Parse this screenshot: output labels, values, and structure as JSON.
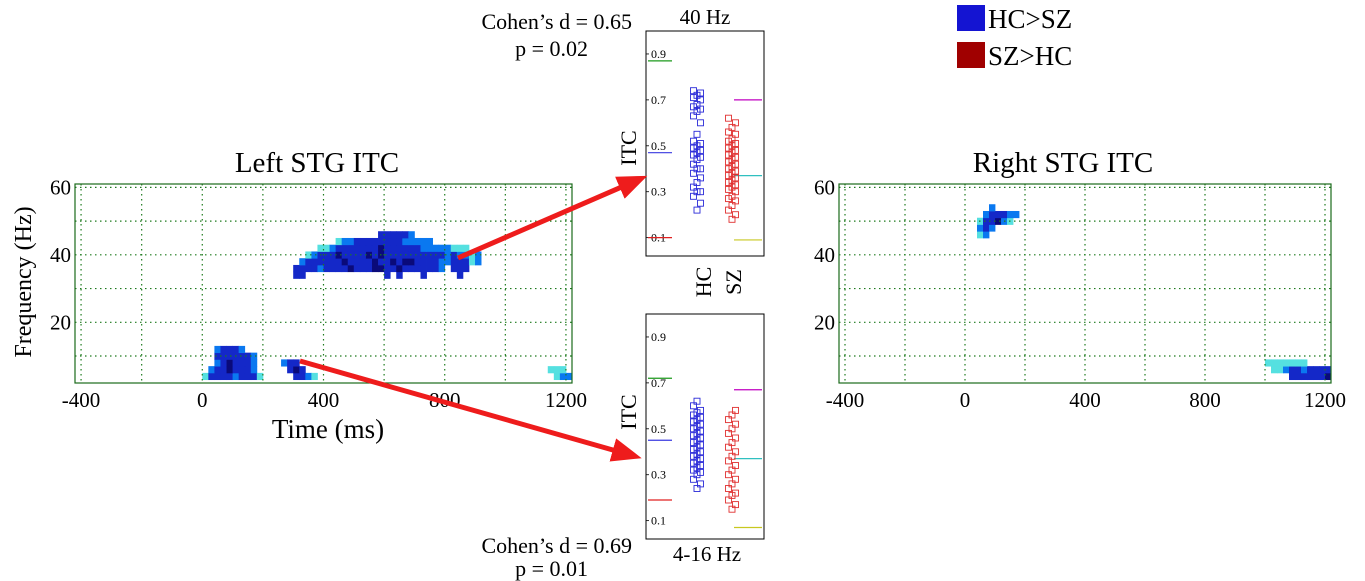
{
  "legend": {
    "items": [
      {
        "label": "HC>SZ",
        "color": "#1414d2"
      },
      {
        "label": "SZ>HC",
        "color": "#a00000"
      }
    ]
  },
  "arrow_color": "#ee1c1c",
  "chart_data": [
    {
      "id": "left_stg",
      "type": "heatmap",
      "title": "Left STG ITC",
      "xlabel": "Time (ms)",
      "ylabel": "Frequency (Hz)",
      "xlim": [
        -420,
        1220
      ],
      "ylim": [
        2,
        61
      ],
      "xticks": [
        -400,
        0,
        400,
        800,
        1200
      ],
      "yticks": [
        20,
        40,
        60
      ],
      "grid": true,
      "cell": {
        "dt": 20,
        "df": 2
      },
      "colors": {
        "1": "#55e0e0",
        "2": "#0a78f0",
        "3": "#1428c8",
        "4": "#0a0a7a"
      },
      "rows": [
        {
          "f": 4,
          "x0": 0,
          "v": [
            1,
            3,
            3,
            3,
            3,
            2,
            3,
            3,
            3,
            1,
            0,
            0,
            0,
            0,
            0,
            3,
            3,
            2,
            1
          ]
        },
        {
          "f": 6,
          "x0": 20,
          "v": [
            2,
            3,
            3,
            4,
            3,
            3,
            3,
            2,
            0,
            0,
            0,
            0,
            0,
            3,
            4,
            3
          ]
        },
        {
          "f": 8,
          "x0": 40,
          "v": [
            2,
            3,
            4,
            3,
            3,
            3,
            2,
            0,
            0,
            0,
            0,
            2,
            3,
            3
          ]
        },
        {
          "f": 10,
          "x0": 40,
          "v": [
            3,
            3,
            3,
            3,
            3,
            3,
            2
          ]
        },
        {
          "f": 12,
          "x0": 40,
          "v": [
            2,
            3,
            3,
            3,
            2
          ]
        },
        {
          "f": 34,
          "x0": 300,
          "v": [
            3,
            3,
            0,
            0,
            0,
            0,
            0,
            0,
            0,
            0,
            0,
            0,
            0,
            0,
            0,
            3,
            0,
            3,
            0,
            0,
            0,
            3,
            0,
            0,
            0,
            0,
            0,
            3
          ]
        },
        {
          "f": 36,
          "x0": 300,
          "v": [
            3,
            3,
            3,
            3,
            2,
            3,
            3,
            3,
            3,
            4,
            3,
            3,
            3,
            4,
            4,
            3,
            3,
            4,
            3,
            3,
            3,
            3,
            3,
            3,
            2,
            0,
            3,
            3,
            3
          ]
        },
        {
          "f": 38,
          "x0": 320,
          "v": [
            2,
            3,
            3,
            3,
            3,
            3,
            3,
            4,
            3,
            3,
            3,
            3,
            4,
            3,
            3,
            4,
            3,
            4,
            4,
            3,
            3,
            3,
            3,
            2,
            2,
            3,
            3,
            3,
            1,
            2
          ]
        },
        {
          "f": 40,
          "x0": 340,
          "v": [
            1,
            2,
            3,
            3,
            3,
            4,
            3,
            3,
            3,
            3,
            4,
            3,
            4,
            3,
            3,
            3,
            3,
            3,
            3,
            3,
            3,
            3,
            3,
            2,
            3,
            2,
            2,
            1,
            2
          ]
        },
        {
          "f": 42,
          "x0": 380,
          "v": [
            1,
            1,
            2,
            3,
            3,
            3,
            3,
            3,
            3,
            3,
            4,
            3,
            3,
            3,
            3,
            3,
            3,
            2,
            2,
            2,
            2,
            2,
            1,
            1,
            1
          ]
        },
        {
          "f": 44,
          "x0": 440,
          "v": [
            1,
            2,
            2,
            3,
            3,
            3,
            3,
            3,
            3,
            3,
            3,
            2,
            2,
            2,
            2,
            2
          ]
        },
        {
          "f": 46,
          "x0": 580,
          "v": [
            3,
            3,
            3,
            3,
            3,
            2
          ]
        },
        {
          "f": 4,
          "x0": 1160,
          "v": [
            1,
            2,
            2
          ]
        },
        {
          "f": 6,
          "x0": 1140,
          "v": [
            1,
            1,
            1
          ]
        }
      ]
    },
    {
      "id": "right_stg",
      "type": "heatmap",
      "title": "Right STG ITC",
      "xlabel": "",
      "ylabel": "",
      "xlim": [
        -420,
        1220
      ],
      "ylim": [
        2,
        61
      ],
      "xticks": [
        -400,
        0,
        400,
        800,
        1200
      ],
      "yticks": [
        20,
        40,
        60
      ],
      "grid": true,
      "cell": {
        "dt": 20,
        "df": 2
      },
      "colors": {
        "1": "#55e0e0",
        "2": "#0a78f0",
        "3": "#1428c8",
        "4": "#0a0a7a"
      },
      "rows": [
        {
          "f": 46,
          "x0": 40,
          "v": [
            1,
            2
          ]
        },
        {
          "f": 48,
          "x0": 40,
          "v": [
            2,
            3,
            2
          ]
        },
        {
          "f": 50,
          "x0": 40,
          "v": [
            1,
            3,
            3,
            4,
            2,
            1
          ]
        },
        {
          "f": 52,
          "x0": 60,
          "v": [
            2,
            3,
            3,
            3,
            2,
            2
          ]
        },
        {
          "f": 54,
          "x0": 80,
          "v": [
            2
          ]
        },
        {
          "f": 4,
          "x0": 1080,
          "v": [
            3,
            3,
            3,
            3,
            3,
            3,
            4
          ]
        },
        {
          "f": 6,
          "x0": 1020,
          "v": [
            1,
            1,
            2,
            3,
            3,
            2,
            3,
            3,
            3,
            3
          ]
        },
        {
          "f": 8,
          "x0": 1000,
          "v": [
            1,
            1,
            1,
            1,
            1,
            1,
            1
          ]
        }
      ]
    },
    {
      "id": "itc_40hz",
      "type": "scatter",
      "title": "40 Hz",
      "xlabel": "",
      "ylabel": "ITC",
      "categories": [
        "HC",
        "SZ"
      ],
      "ylim": [
        0.02,
        1.0
      ],
      "yticks": [
        0.1,
        0.3,
        0.5,
        0.7,
        0.9
      ],
      "stats": {
        "effect": "Cohen’s d = 0.65",
        "p": "p = 0.02"
      },
      "series": [
        {
          "name": "HC",
          "color": "#2a2ad8",
          "values": [
            0.22,
            0.25,
            0.28,
            0.3,
            0.3,
            0.32,
            0.34,
            0.36,
            0.38,
            0.4,
            0.4,
            0.42,
            0.44,
            0.45,
            0.46,
            0.47,
            0.48,
            0.49,
            0.5,
            0.51,
            0.52,
            0.55,
            0.6,
            0.63,
            0.65,
            0.66,
            0.67,
            0.68,
            0.7,
            0.71,
            0.72,
            0.73,
            0.74
          ],
          "mean": 0.47,
          "max": 0.87,
          "min": 0.1,
          "mean_color": "#3a3ae0",
          "max_color": "#1c9a1c",
          "min_color": "#e02020"
        },
        {
          "name": "SZ",
          "color": "#e03030",
          "values": [
            0.18,
            0.2,
            0.22,
            0.24,
            0.26,
            0.27,
            0.28,
            0.3,
            0.31,
            0.32,
            0.33,
            0.34,
            0.35,
            0.36,
            0.37,
            0.38,
            0.39,
            0.4,
            0.41,
            0.42,
            0.43,
            0.44,
            0.45,
            0.46,
            0.47,
            0.48,
            0.49,
            0.5,
            0.51,
            0.52,
            0.53,
            0.55,
            0.56,
            0.58,
            0.6,
            0.62
          ],
          "mean": 0.37,
          "max": 0.7,
          "min": 0.09,
          "mean_color": "#30c0c0",
          "max_color": "#c000c0",
          "min_color": "#c8c820"
        }
      ]
    },
    {
      "id": "itc_4_16hz",
      "type": "scatter",
      "title": "",
      "xlabel": "4-16 Hz",
      "ylabel": "ITC",
      "categories": [
        "HC",
        "SZ"
      ],
      "ylim": [
        0.02,
        1.0
      ],
      "yticks": [
        0.1,
        0.3,
        0.5,
        0.7,
        0.9
      ],
      "stats": {
        "effect": "Cohen’s d = 0.69",
        "p": "p = 0.01"
      },
      "series": [
        {
          "name": "HC",
          "color": "#2a2ad8",
          "values": [
            0.24,
            0.26,
            0.28,
            0.3,
            0.31,
            0.32,
            0.33,
            0.34,
            0.35,
            0.36,
            0.37,
            0.38,
            0.39,
            0.4,
            0.41,
            0.42,
            0.43,
            0.44,
            0.45,
            0.46,
            0.47,
            0.48,
            0.49,
            0.5,
            0.51,
            0.52,
            0.53,
            0.54,
            0.55,
            0.56,
            0.57,
            0.58,
            0.6,
            0.62
          ],
          "mean": 0.45,
          "max": 0.72,
          "min": 0.19,
          "mean_color": "#3a3ae0",
          "max_color": "#1c9a1c",
          "min_color": "#e02020"
        },
        {
          "name": "SZ",
          "color": "#e03030",
          "values": [
            0.15,
            0.17,
            0.19,
            0.21,
            0.22,
            0.24,
            0.26,
            0.28,
            0.3,
            0.32,
            0.34,
            0.36,
            0.38,
            0.4,
            0.42,
            0.44,
            0.46,
            0.48,
            0.5,
            0.52,
            0.54,
            0.56,
            0.58
          ],
          "mean": 0.37,
          "max": 0.67,
          "min": 0.07,
          "mean_color": "#30c0c0",
          "max_color": "#c000c0",
          "min_color": "#c8c820"
        }
      ]
    }
  ]
}
